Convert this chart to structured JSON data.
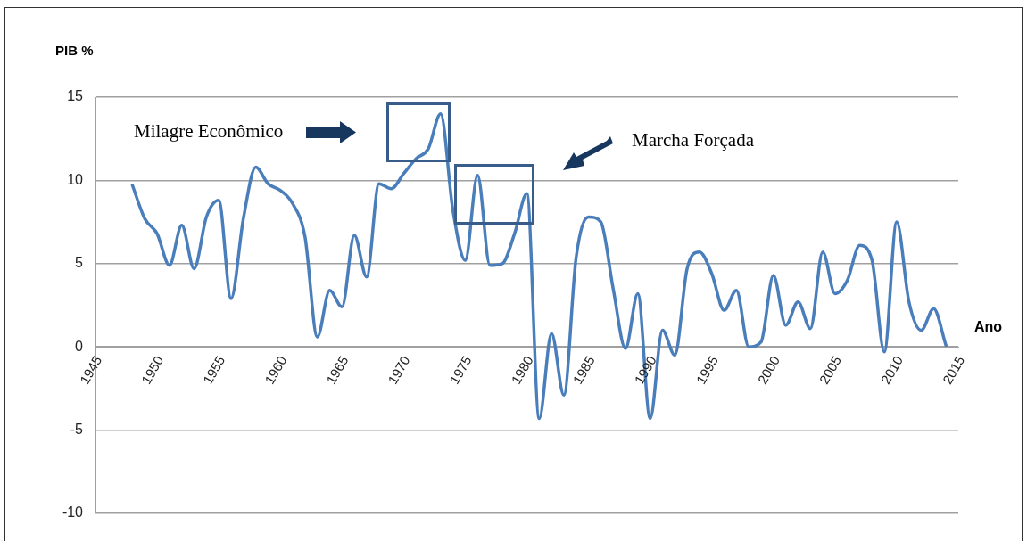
{
  "chart_data": {
    "type": "line",
    "xlabel": "Ano",
    "ylabel": "PIB %",
    "annotations": [
      "Milagre Econômico",
      "Marcha Forçada"
    ],
    "x": [
      1948,
      1949,
      1950,
      1951,
      1952,
      1953,
      1954,
      1955,
      1956,
      1957,
      1958,
      1959,
      1960,
      1961,
      1962,
      1963,
      1964,
      1965,
      1966,
      1967,
      1968,
      1969,
      1970,
      1971,
      1972,
      1973,
      1974,
      1975,
      1976,
      1977,
      1978,
      1979,
      1980,
      1981,
      1982,
      1983,
      1984,
      1985,
      1986,
      1987,
      1988,
      1989,
      1990,
      1991,
      1992,
      1993,
      1994,
      1995,
      1996,
      1997,
      1998,
      1999,
      2000,
      2001,
      2002,
      2003,
      2004,
      2005,
      2006,
      2007,
      2008,
      2009,
      2010,
      2011,
      2012,
      2013,
      2014
    ],
    "series": [
      {
        "color": "#4a7ebb",
        "values": [
          9.7,
          7.7,
          6.8,
          4.9,
          7.3,
          4.7,
          7.8,
          8.8,
          2.9,
          7.7,
          10.8,
          9.8,
          9.4,
          8.6,
          6.6,
          0.6,
          3.4,
          2.4,
          6.7,
          4.2,
          9.8,
          9.5,
          10.4,
          11.3,
          11.9,
          14.0,
          8.2,
          5.2,
          10.3,
          4.9,
          5.0,
          6.8,
          9.2,
          -4.3,
          0.8,
          -2.9,
          5.4,
          7.8,
          7.5,
          3.5,
          -0.1,
          3.2,
          -4.3,
          1.0,
          -0.5,
          4.7,
          5.7,
          4.4,
          2.2,
          3.4,
          0.0,
          0.3,
          4.3,
          1.3,
          2.7,
          1.1,
          5.7,
          3.2,
          4.0,
          6.1,
          5.2,
          -0.3,
          7.5,
          2.7,
          1.0,
          2.3,
          0.1
        ]
      }
    ],
    "xlim": [
      1945,
      2015
    ],
    "xticks": [
      1945,
      1950,
      1955,
      1960,
      1965,
      1970,
      1975,
      1980,
      1985,
      1990,
      1995,
      2000,
      2005,
      2010,
      2015
    ],
    "ylim": [
      -10,
      15
    ],
    "yticks": [
      -10,
      -5,
      0,
      5,
      10,
      15
    ],
    "grid": "y",
    "marker": "none",
    "line_style": "solid"
  }
}
